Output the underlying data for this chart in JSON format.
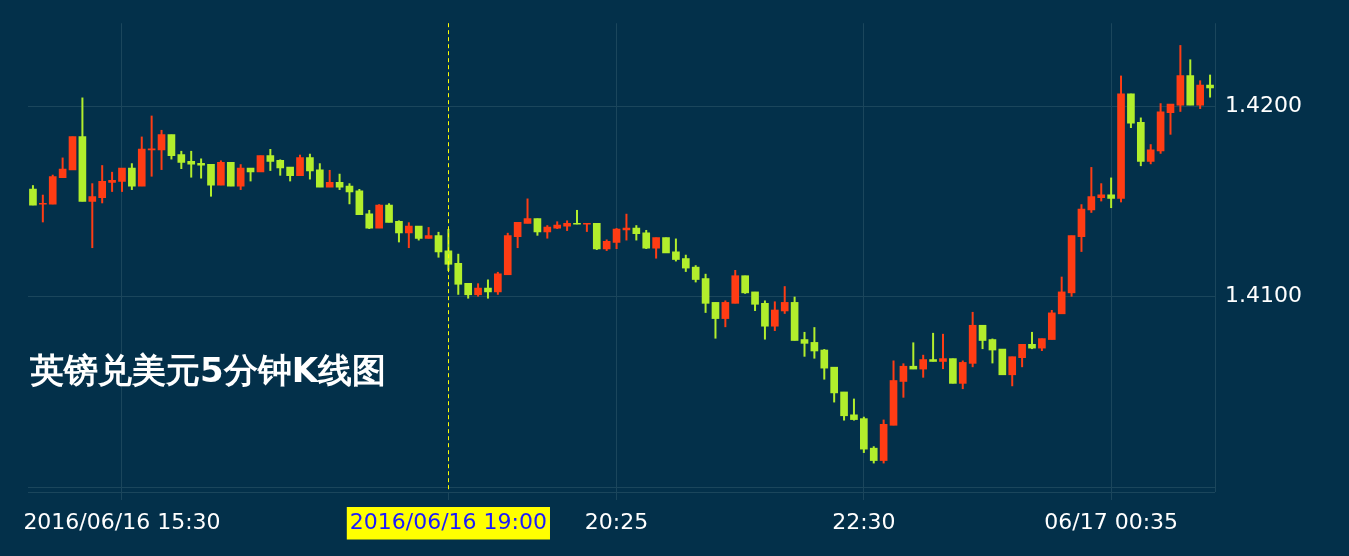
{
  "chart_data": {
    "type": "candlestick",
    "title": "英镑兑美元5分钟K线图",
    "categories": [
      null,
      null,
      null,
      null,
      null,
      null,
      null,
      null,
      null,
      "2016/06/16 15:30",
      null,
      null,
      null,
      null,
      null,
      null,
      null,
      null,
      null,
      null,
      null,
      null,
      null,
      null,
      null,
      null,
      null,
      null,
      null,
      null,
      null,
      null,
      null,
      null,
      null,
      null,
      null,
      null,
      null,
      null,
      null,
      null,
      "2016/06/16 19:00",
      null,
      null,
      null,
      null,
      null,
      null,
      null,
      null,
      null,
      null,
      null,
      null,
      null,
      null,
      null,
      null,
      "20:25",
      null,
      null,
      null,
      null,
      null,
      null,
      null,
      null,
      null,
      null,
      null,
      null,
      null,
      null,
      null,
      null,
      null,
      null,
      null,
      null,
      null,
      null,
      null,
      null,
      "22:30",
      null,
      null,
      null,
      null,
      null,
      null,
      null,
      null,
      null,
      null,
      null,
      null,
      null,
      null,
      null,
      null,
      null,
      null,
      null,
      null,
      null,
      null,
      null,
      null,
      "06/17 00:35",
      null,
      null,
      null,
      null,
      null,
      null,
      null,
      null,
      null,
      null
    ],
    "ohlc": [
      [
        1.41565,
        1.41585,
        1.4148,
        1.4148
      ],
      [
        1.41485,
        1.41535,
        1.4139,
        1.4149
      ],
      [
        1.41485,
        1.4164,
        1.41485,
        1.4163
      ],
      [
        1.41625,
        1.4173,
        1.41625,
        1.4167
      ],
      [
        1.41665,
        1.4184,
        1.41665,
        1.4184
      ],
      [
        1.4184,
        1.42045,
        1.415,
        1.415
      ],
      [
        1.415,
        1.41595,
        1.41255,
        1.41525
      ],
      [
        1.4152,
        1.4169,
        1.4149,
        1.41605
      ],
      [
        1.416,
        1.41655,
        1.4155,
        1.4161
      ],
      [
        1.41605,
        1.41675,
        1.4155,
        1.41675
      ],
      [
        1.41675,
        1.417,
        1.4156,
        1.4158
      ],
      [
        1.4158,
        1.4184,
        1.4158,
        1.41775
      ],
      [
        1.4177,
        1.4195,
        1.4163,
        1.41775
      ],
      [
        1.4177,
        1.41875,
        1.41665,
        1.4185
      ],
      [
        1.4185,
        1.4185,
        1.4172,
        1.4174
      ],
      [
        1.41745,
        1.41765,
        1.4167,
        1.41705
      ],
      [
        1.4171,
        1.41765,
        1.41625,
        1.41695
      ],
      [
        1.417,
        1.41725,
        1.4162,
        1.4169
      ],
      [
        1.41695,
        1.41695,
        1.41525,
        1.41585
      ],
      [
        1.41585,
        1.41715,
        1.41585,
        1.41705
      ],
      [
        1.41705,
        1.41705,
        1.4158,
        1.4158
      ],
      [
        1.4158,
        1.41695,
        1.4156,
        1.41675
      ],
      [
        1.41675,
        1.41675,
        1.41605,
        1.41655
      ],
      [
        1.41655,
        1.4174,
        1.41655,
        1.4174
      ],
      [
        1.4174,
        1.41775,
        1.4166,
        1.4171
      ],
      [
        1.41715,
        1.4172,
        1.41635,
        1.41675
      ],
      [
        1.4168,
        1.4168,
        1.41605,
        1.41635
      ],
      [
        1.41635,
        1.41745,
        1.41635,
        1.4173
      ],
      [
        1.4173,
        1.4175,
        1.41615,
        1.4166
      ],
      [
        1.41665,
        1.417,
        1.41575,
        1.41575
      ],
      [
        1.41575,
        1.41665,
        1.41575,
        1.416
      ],
      [
        1.416,
        1.41645,
        1.4156,
        1.41575
      ],
      [
        1.4158,
        1.41595,
        1.41485,
        1.4155
      ],
      [
        1.41555,
        1.41565,
        1.4143,
        1.4143
      ],
      [
        1.41435,
        1.41455,
        1.41355,
        1.4136
      ],
      [
        1.4136,
        1.41485,
        1.4136,
        1.4148
      ],
      [
        1.4148,
        1.4149,
        1.4139,
        1.4139
      ],
      [
        1.41395,
        1.414,
        1.41285,
        1.41335
      ],
      [
        1.41335,
        1.4139,
        1.41255,
        1.4137
      ],
      [
        1.4137,
        1.4137,
        1.41295,
        1.41305
      ],
      [
        1.41305,
        1.41365,
        1.41305,
        1.4132
      ],
      [
        1.4132,
        1.4134,
        1.41205,
        1.41235
      ],
      [
        1.4124,
        1.41355,
        1.41135,
        1.4117
      ],
      [
        1.41175,
        1.41225,
        1.4101,
        1.41065
      ],
      [
        1.4107,
        1.4107,
        1.4099,
        1.4101
      ],
      [
        1.4101,
        1.4107,
        1.41,
        1.41045
      ],
      [
        1.41045,
        1.4109,
        1.4099,
        1.41025
      ],
      [
        1.41025,
        1.4113,
        1.4101,
        1.4112
      ],
      [
        1.41115,
        1.41335,
        1.41115,
        1.4132
      ],
      [
        1.41315,
        1.4139,
        1.41255,
        1.4139
      ],
      [
        1.41385,
        1.41515,
        1.41385,
        1.4141
      ],
      [
        1.4141,
        1.4141,
        1.4132,
        1.4134
      ],
      [
        1.4134,
        1.41375,
        1.41305,
        1.41365
      ],
      [
        1.4136,
        1.41395,
        1.41355,
        1.41375
      ],
      [
        1.4137,
        1.414,
        1.41345,
        1.41385
      ],
      [
        1.41385,
        1.41455,
        1.4138,
        1.4138
      ],
      [
        1.4138,
        1.41385,
        1.4134,
        1.41385
      ],
      [
        1.41385,
        1.41385,
        1.41245,
        1.4125
      ],
      [
        1.4125,
        1.413,
        1.4124,
        1.4129
      ],
      [
        1.41285,
        1.4136,
        1.4125,
        1.41355
      ],
      [
        1.4135,
        1.41435,
        1.41295,
        1.4136
      ],
      [
        1.4136,
        1.41375,
        1.41295,
        1.4133
      ],
      [
        1.41335,
        1.4135,
        1.4125,
        1.41255
      ],
      [
        1.41255,
        1.4131,
        1.412,
        1.4131
      ],
      [
        1.4131,
        1.4131,
        1.4123,
        1.4123
      ],
      [
        1.41235,
        1.41305,
        1.41185,
        1.41195
      ],
      [
        1.412,
        1.4122,
        1.4113,
        1.4115
      ],
      [
        1.41155,
        1.41165,
        1.41075,
        1.4109
      ],
      [
        1.41095,
        1.4112,
        1.40915,
        1.40965
      ],
      [
        1.4097,
        1.4097,
        1.4078,
        1.40885
      ],
      [
        1.40885,
        1.4098,
        1.4084,
        1.4097
      ],
      [
        1.40965,
        1.4114,
        1.40965,
        1.4111
      ],
      [
        1.4111,
        1.4111,
        1.41015,
        1.4102
      ],
      [
        1.41025,
        1.41025,
        1.40925,
        1.4096
      ],
      [
        1.40965,
        1.4098,
        1.40775,
        1.40845
      ],
      [
        1.40845,
        1.40975,
        1.4082,
        1.4093
      ],
      [
        1.40925,
        1.41055,
        1.4091,
        1.4097
      ],
      [
        1.4097,
        1.41,
        1.4077,
        1.4077
      ],
      [
        1.40775,
        1.40815,
        1.40685,
        1.40755
      ],
      [
        1.4076,
        1.4084,
        1.40675,
        1.40715
      ],
      [
        1.4072,
        1.40725,
        1.40565,
        1.40625
      ],
      [
        1.4063,
        1.4063,
        1.40445,
        1.40495
      ],
      [
        1.405,
        1.405,
        1.4035,
        1.40375
      ],
      [
        1.4038,
        1.40465,
        1.4035,
        1.40355
      ],
      [
        1.4036,
        1.4037,
        1.4018,
        1.402
      ],
      [
        1.40205,
        1.40215,
        1.40125,
        1.4014
      ],
      [
        1.4014,
        1.40355,
        1.40125,
        1.4033
      ],
      [
        1.40325,
        1.40665,
        1.40325,
        1.4056
      ],
      [
        1.40555,
        1.4065,
        1.4047,
        1.40635
      ],
      [
        1.40635,
        1.4076,
        1.4062,
        1.4062
      ],
      [
        1.4062,
        1.40695,
        1.40575,
        1.4067
      ],
      [
        1.4067,
        1.4081,
        1.4066,
        1.4066
      ],
      [
        1.4066,
        1.40805,
        1.4062,
        1.40675
      ],
      [
        1.40675,
        1.40675,
        1.40545,
        1.40545
      ],
      [
        1.40545,
        1.40665,
        1.40515,
        1.40655
      ],
      [
        1.4065,
        1.4092,
        1.4063,
        1.4085
      ],
      [
        1.4085,
        1.4085,
        1.40725,
        1.4077
      ],
      [
        1.40775,
        1.4078,
        1.4065,
        1.4072
      ],
      [
        1.40725,
        1.40725,
        1.4059,
        1.4059
      ],
      [
        1.4059,
        1.40685,
        1.4053,
        1.40685
      ],
      [
        1.4068,
        1.4075,
        1.4063,
        1.4075
      ],
      [
        1.4075,
        1.40815,
        1.40725,
        1.4073
      ],
      [
        1.4073,
        1.4078,
        1.40715,
        1.4078
      ],
      [
        1.40775,
        1.4093,
        1.40775,
        1.40915
      ],
      [
        1.4091,
        1.41105,
        1.4091,
        1.41025
      ],
      [
        1.4102,
        1.4132,
        1.41,
        1.4132
      ],
      [
        1.41315,
        1.41485,
        1.41235,
        1.4146
      ],
      [
        1.41455,
        1.4168,
        1.4144,
        1.41525
      ],
      [
        1.4152,
        1.41595,
        1.415,
        1.41535
      ],
      [
        1.41535,
        1.41625,
        1.41465,
        1.41515
      ],
      [
        1.41515,
        1.4216,
        1.41495,
        1.42065
      ],
      [
        1.42065,
        1.42065,
        1.41885,
        1.4191
      ],
      [
        1.41915,
        1.4194,
        1.41685,
        1.4171
      ],
      [
        1.4171,
        1.418,
        1.41695,
        1.4177
      ],
      [
        1.41765,
        1.42015,
        1.4175,
        1.4197
      ],
      [
        1.41965,
        1.4201,
        1.4185,
        1.4201
      ],
      [
        1.42005,
        1.4232,
        1.4197,
        1.4216
      ],
      [
        1.4216,
        1.42245,
        1.42005,
        1.42005
      ],
      [
        1.42005,
        1.42135,
        1.41985,
        1.4211
      ],
      [
        1.4211,
        1.42165,
        1.42045,
        1.42095
      ]
    ],
    "colors": [
      "#b2ee2c",
      "#ff3c14",
      "#ff3c14",
      "#ff3c14",
      "#ff3c14",
      "#b2ee2c",
      "#ff3c14",
      "#ff3c14",
      "#ff3c14",
      "#ff3c14",
      "#b2ee2c",
      "#ff3c14",
      "#ff3c14",
      "#ff3c14",
      "#b2ee2c",
      "#b2ee2c",
      "#b2ee2c",
      "#b2ee2c",
      "#b2ee2c",
      "#ff3c14",
      "#b2ee2c",
      "#ff3c14",
      "#b2ee2c",
      "#ff3c14",
      "#b2ee2c",
      "#b2ee2c",
      "#b2ee2c",
      "#ff3c14",
      "#b2ee2c",
      "#b2ee2c",
      "#ff3c14",
      "#b2ee2c",
      "#b2ee2c",
      "#b2ee2c",
      "#b2ee2c",
      "#ff3c14",
      "#b2ee2c",
      "#b2ee2c",
      "#ff3c14",
      "#b2ee2c",
      "#ff3c14",
      "#b2ee2c",
      "#b2ee2c",
      "#b2ee2c",
      "#b2ee2c",
      "#ff3c14",
      "#b2ee2c",
      "#ff3c14",
      "#ff3c14",
      "#ff3c14",
      "#ff3c14",
      "#b2ee2c",
      "#ff3c14",
      "#ff3c14",
      "#ff3c14",
      "#b2ee2c",
      "#ff3c14",
      "#b2ee2c",
      "#ff3c14",
      "#ff3c14",
      "#ff3c14",
      "#b2ee2c",
      "#b2ee2c",
      "#ff3c14",
      "#b2ee2c",
      "#b2ee2c",
      "#b2ee2c",
      "#b2ee2c",
      "#b2ee2c",
      "#b2ee2c",
      "#ff3c14",
      "#ff3c14",
      "#b2ee2c",
      "#b2ee2c",
      "#b2ee2c",
      "#ff3c14",
      "#ff3c14",
      "#b2ee2c",
      "#b2ee2c",
      "#b2ee2c",
      "#b2ee2c",
      "#b2ee2c",
      "#b2ee2c",
      "#b2ee2c",
      "#b2ee2c",
      "#b2ee2c",
      "#ff3c14",
      "#ff3c14",
      "#ff3c14",
      "#b2ee2c",
      "#ff3c14",
      "#b2ee2c",
      "#ff3c14",
      "#b2ee2c",
      "#ff3c14",
      "#ff3c14",
      "#b2ee2c",
      "#b2ee2c",
      "#b2ee2c",
      "#ff3c14",
      "#ff3c14",
      "#b2ee2c",
      "#ff3c14",
      "#ff3c14",
      "#ff3c14",
      "#ff3c14",
      "#ff3c14",
      "#ff3c14",
      "#ff3c14",
      "#b2ee2c",
      "#ff3c14",
      "#b2ee2c",
      "#b2ee2c",
      "#ff3c14",
      "#ff3c14",
      "#ff3c14",
      "#ff3c14",
      "#b2ee2c",
      "#ff3c14",
      "#b2ee2c"
    ],
    "ylim": [
      1.39975,
      1.42435
    ],
    "yticks": [
      {
        "value": 1.4,
        "label": null
      },
      {
        "value": 1.41,
        "label": "1.4100"
      },
      {
        "value": 1.42,
        "label": "1.4200"
      }
    ],
    "ref_lines": [
      {
        "axis": "x",
        "value": "2016/06/16 19:00",
        "color": "#ffff00",
        "line_style": "dashed"
      }
    ],
    "grid": true,
    "legend": false
  }
}
